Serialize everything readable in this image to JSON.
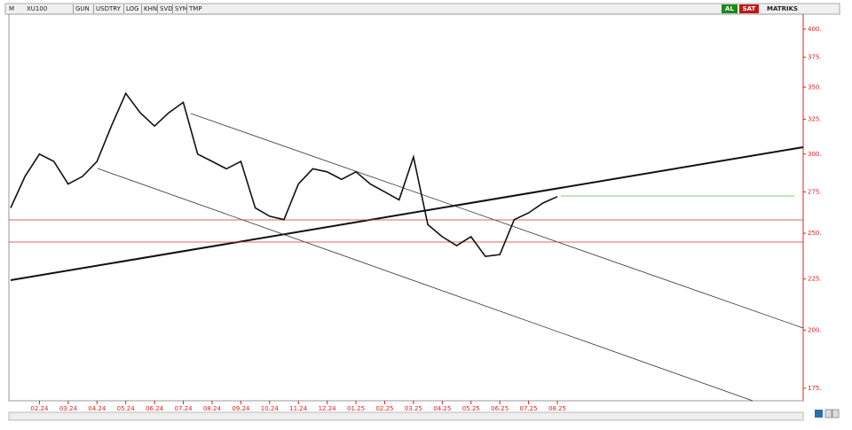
{
  "toolbar": {
    "mode": "M",
    "symbol": "XU100",
    "buttons": [
      "GUN",
      "USDTRY",
      "LOG",
      "KHN",
      "SVD",
      "SYM",
      "TMP"
    ],
    "buy": "AL",
    "sell": "SAT",
    "brand": "MATRIKS"
  },
  "chart_data": {
    "type": "line",
    "color": "#111111",
    "log_scale": true,
    "categories": [
      null,
      null,
      "02.24",
      null,
      "03.24",
      null,
      "04.24",
      null,
      "05.24",
      null,
      "06.24",
      null,
      "07.24",
      null,
      "08.24",
      null,
      "09.24",
      null,
      "10.24",
      null,
      "11.24",
      null,
      "12.24",
      null,
      "01.25",
      null,
      "02.25",
      null,
      "03.25",
      null,
      "04.25",
      null,
      "05.25",
      null,
      "06.25",
      null,
      "07.25",
      null,
      "08.25"
    ],
    "values": [
      265,
      285,
      300,
      295,
      280,
      285,
      295,
      320,
      345,
      330,
      320,
      330,
      338,
      300,
      295,
      290,
      295,
      265,
      260,
      258,
      280,
      290,
      288,
      283,
      288,
      280,
      275,
      270,
      298,
      255,
      248,
      243,
      248,
      237,
      238,
      258,
      262,
      268,
      272
    ],
    "ylim": [
      170,
      414
    ],
    "yticks": [
      {
        "value": 175,
        "label": "175."
      },
      {
        "value": 200,
        "label": "200."
      },
      {
        "value": 225,
        "label": "225."
      },
      {
        "value": 250,
        "label": "250."
      },
      {
        "value": 275,
        "label": "275."
      },
      {
        "value": 300,
        "label": "300."
      },
      {
        "value": 325,
        "label": "325."
      },
      {
        "value": 350,
        "label": "350."
      },
      {
        "value": 375,
        "label": "375."
      },
      {
        "value": 400,
        "label": "400."
      }
    ]
  }
}
